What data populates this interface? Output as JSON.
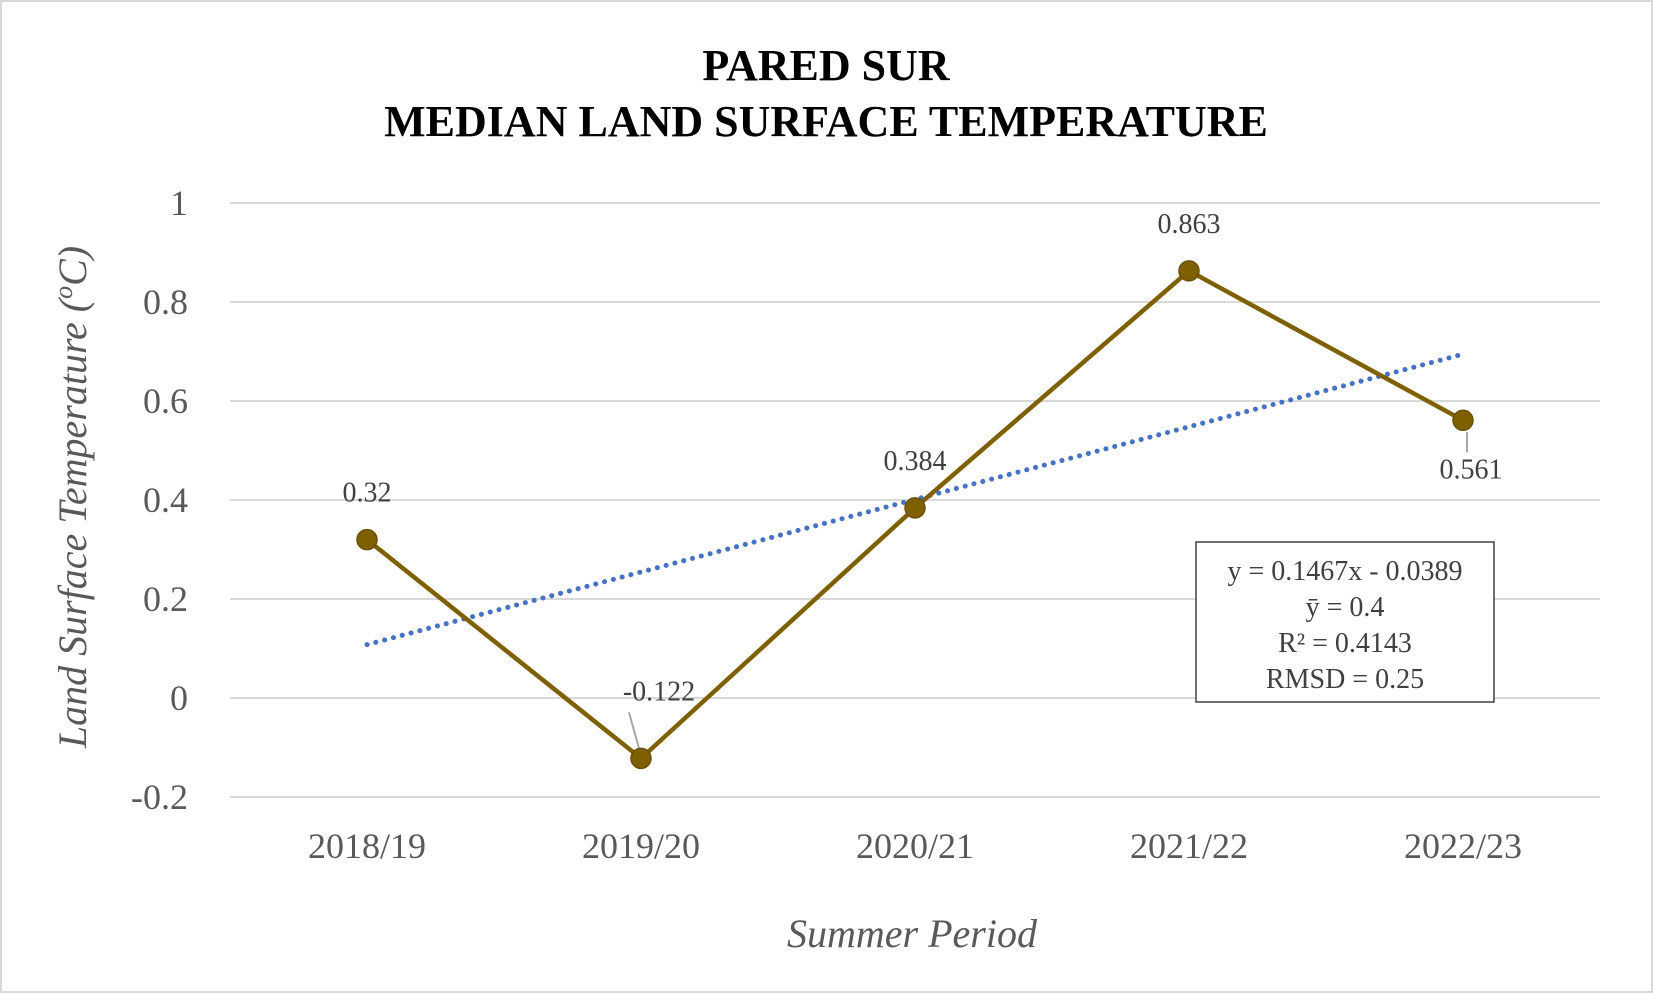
{
  "chart_data": {
    "type": "line",
    "title": [
      "PARED SUR",
      "MEDIAN LAND SURFACE TEMPERATURE"
    ],
    "xlabel": "Summer Period",
    "ylabel": "Land Surface Temperature (",
    "ylabel_sup": "o",
    "ylabel_end": "C)",
    "categories": [
      "2018/19",
      "2019/20",
      "2020/21",
      "2021/22",
      "2022/23"
    ],
    "series": [
      {
        "values": [
          0.32,
          -0.122,
          0.384,
          0.863,
          0.561
        ],
        "data_labels": [
          "0.32",
          "-0.122",
          "0.384",
          "0.863",
          "0.561"
        ],
        "color": "#7f6000"
      }
    ],
    "trendline": {
      "type": "linear",
      "slope": 0.1467,
      "intercept": -0.0389,
      "color": "#4472c4",
      "style": "dotted"
    },
    "stats_box": [
      "y = 0.1467x - 0.0389",
      "ȳ =  0.4",
      "R² = 0.4143",
      "RMSD = 0.25"
    ],
    "yticks": [
      "-0.2",
      "0",
      "0.2",
      "0.4",
      "0.6",
      "0.8",
      "1"
    ],
    "ylim": [
      -0.2,
      1
    ],
    "grid": true,
    "gridColor": "#d9d9d9"
  }
}
